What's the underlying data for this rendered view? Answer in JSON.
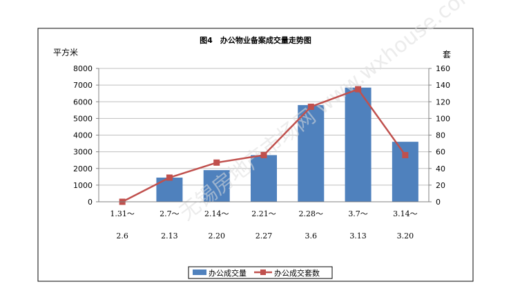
{
  "chart_data": {
    "type": "bar",
    "title": "图4　办公物业备案成交量走势图",
    "ylabel_left": "平方米",
    "ylabel_right": "套",
    "categories": [
      [
        "1.31～",
        "2.6"
      ],
      [
        "2.7～",
        "2.13"
      ],
      [
        "2.14～",
        "2.20"
      ],
      [
        "2.21～",
        "2.27"
      ],
      [
        "2.28～",
        "3.6"
      ],
      [
        "3.7～",
        "3.13"
      ],
      [
        "3.14～",
        "3.20"
      ]
    ],
    "y_left": {
      "min": 0,
      "max": 8000,
      "step": 1000
    },
    "y_right": {
      "min": 0,
      "max": 160,
      "step": 20
    },
    "grid": true,
    "legend_position": "bottom",
    "series": [
      {
        "name": "办公成交量",
        "type": "bar",
        "axis": "left",
        "color": "#4f81bd",
        "values": [
          0,
          1450,
          1900,
          2800,
          5800,
          6850,
          3600
        ]
      },
      {
        "name": "办公成交套数",
        "type": "line",
        "axis": "right",
        "color": "#c0504d",
        "values": [
          0,
          29,
          47,
          56,
          114,
          135,
          56
        ]
      }
    ]
  },
  "watermark": "无锡房地产市场网 www.wxhouse.com"
}
